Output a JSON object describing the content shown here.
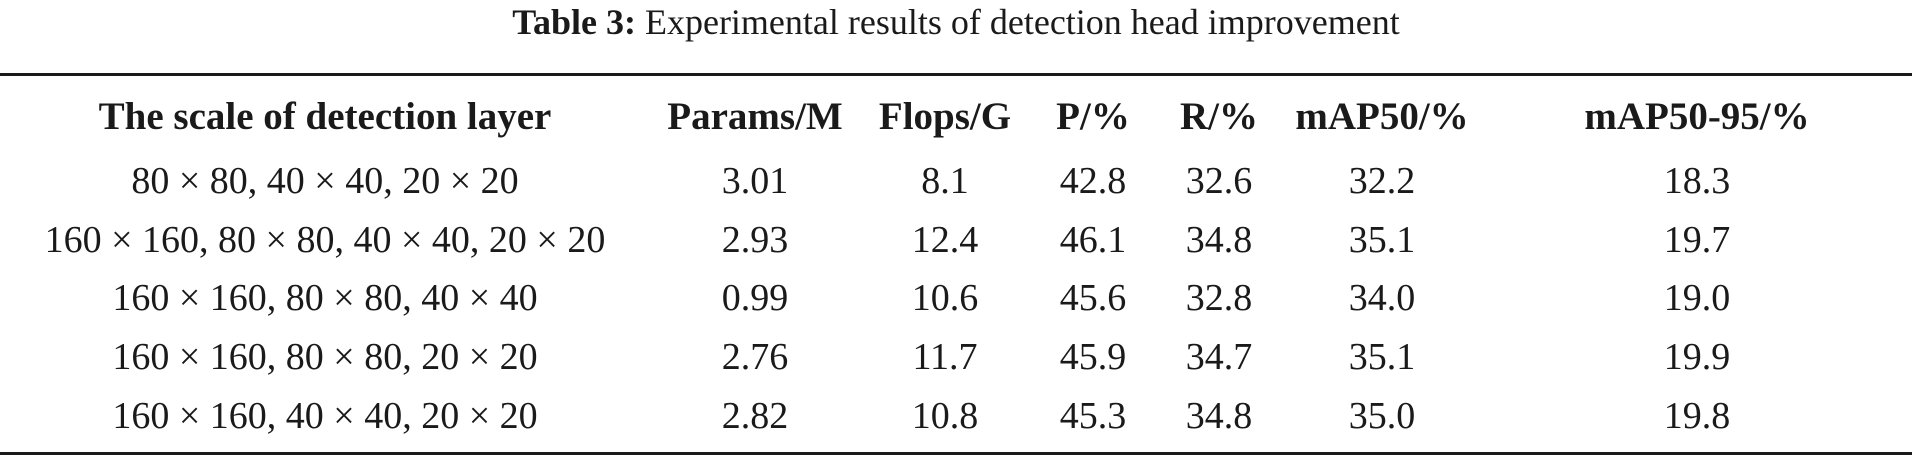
{
  "caption": {
    "label": "Table 3:",
    "text": "Experimental results of detection head improvement"
  },
  "table": {
    "headers": [
      "The scale of detection layer",
      "Params/M",
      "Flops/G",
      "P/%",
      "R/%",
      "mAP50/%",
      "mAP50-95/%"
    ],
    "rows": [
      [
        "80 × 80, 40 × 40, 20 × 20",
        "3.01",
        "8.1",
        "42.8",
        "32.6",
        "32.2",
        "18.3"
      ],
      [
        "160 × 160, 80 × 80, 40 × 40, 20 × 20",
        "2.93",
        "12.4",
        "46.1",
        "34.8",
        "35.1",
        "19.7"
      ],
      [
        "160 × 160, 80 × 80, 40 × 40",
        "0.99",
        "10.6",
        "45.6",
        "32.8",
        "34.0",
        "19.0"
      ],
      [
        "160 × 160, 80 × 80, 20 × 20",
        "2.76",
        "11.7",
        "45.9",
        "34.7",
        "35.1",
        "19.9"
      ],
      [
        "160 × 160, 40 × 40, 20 × 20",
        "2.82",
        "10.8",
        "45.3",
        "34.8",
        "35.0",
        "19.8"
      ]
    ]
  }
}
